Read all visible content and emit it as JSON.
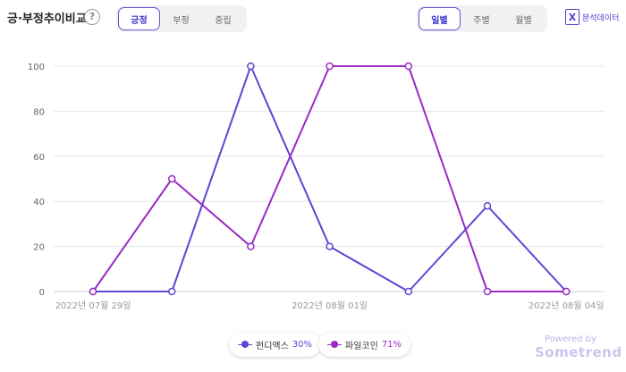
{
  "header": {
    "title": "긍·부정추이비교",
    "help_icon": "?",
    "sentiment_tabs": [
      "긍정",
      "부정",
      "중립"
    ],
    "sentiment_active": 0,
    "period_tabs": [
      "일별",
      "주별",
      "월별"
    ],
    "period_active": 0,
    "analysis_label": "분석데이터",
    "analysis_icon": "excel-icon"
  },
  "legend": [
    {
      "name": "펀디엑스",
      "pct": "30%",
      "color": "#5b47d6"
    },
    {
      "name": "파일코인",
      "pct": "71%",
      "color": "#9a2ac4"
    }
  ],
  "footer": {
    "powered_by": "Powered by",
    "brand": "Sometrend"
  },
  "chart_data": {
    "type": "line",
    "x": [
      "2022-07-29",
      "2022-07-30",
      "2022-07-31",
      "2022-08-01",
      "2022-08-02",
      "2022-08-03",
      "2022-08-04"
    ],
    "x_tick_labels": [
      "2022년 07월 29일",
      "",
      "",
      "2022년 08월 01일",
      "",
      "",
      "2022년 08월 04일"
    ],
    "y_ticks": [
      "0",
      "20",
      "40",
      "60",
      "80",
      "100"
    ],
    "ylim": [
      0,
      100
    ],
    "grid": true,
    "legend_position": "bottom",
    "series": [
      {
        "name": "펀디엑스",
        "color": "#5b47d6",
        "values": [
          0,
          0,
          100,
          20,
          0,
          38,
          0
        ]
      },
      {
        "name": "파일코인",
        "color": "#9a2ac4",
        "values": [
          0,
          50,
          20,
          100,
          100,
          0,
          0
        ]
      }
    ]
  }
}
